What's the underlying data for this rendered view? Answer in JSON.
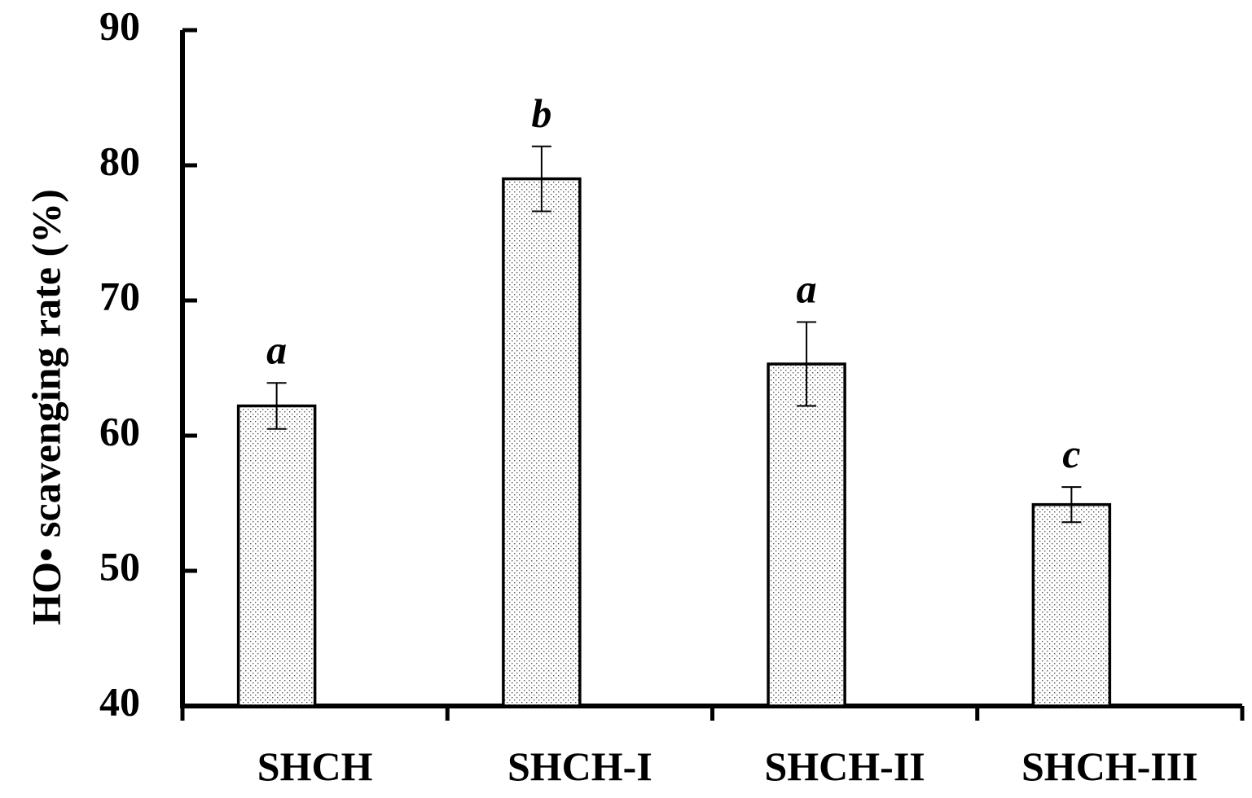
{
  "chart_data": {
    "type": "bar",
    "y_label": "HO• scavenging rate (%)",
    "categories": [
      "SHCH",
      "SHCH-I",
      "SHCH-II",
      "SHCH-III"
    ],
    "values": [
      62.2,
      79.0,
      65.3,
      54.9
    ],
    "errors": [
      1.7,
      2.4,
      3.1,
      1.3
    ],
    "significance_labels": [
      "a",
      "b",
      "a",
      "c"
    ],
    "ylim": [
      40,
      90
    ],
    "yticks": [
      40,
      50,
      60,
      70,
      80,
      90
    ],
    "grid": false
  }
}
